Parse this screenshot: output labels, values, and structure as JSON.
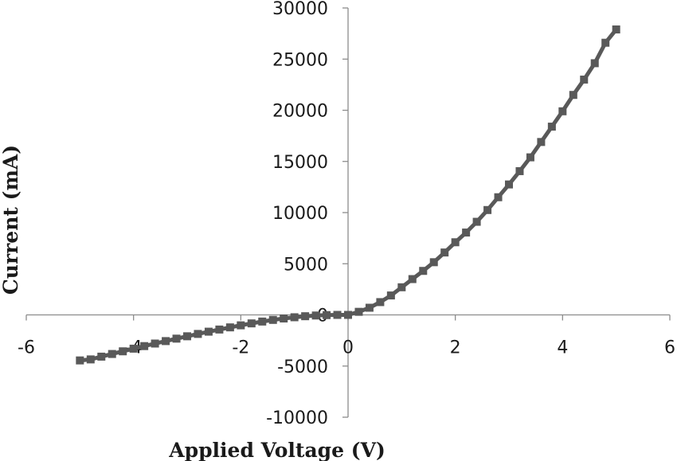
{
  "chart_data": {
    "type": "scatter",
    "title": "",
    "xlabel": "Applied Voltage (V)",
    "ylabel": "Current (mA)",
    "xlim": [
      -6,
      6
    ],
    "ylim": [
      -10000,
      30000
    ],
    "x_ticks": [
      -6,
      -4,
      -2,
      0,
      2,
      4,
      6
    ],
    "y_ticks": [
      -10000,
      -5000,
      0,
      5000,
      10000,
      15000,
      20000,
      25000,
      30000
    ],
    "x_tick_labels": [
      "-6",
      "-4",
      "-2",
      "0",
      "2",
      "4",
      "6"
    ],
    "y_tick_labels": [
      "-10000",
      "-5000",
      "0",
      "5000",
      "10000",
      "15000",
      "20000",
      "25000",
      "30000"
    ],
    "grid": false,
    "legend": "none",
    "series_color": "#595959",
    "marker": "square",
    "series": [
      {
        "x": [
          -5.0,
          -4.8,
          -4.6,
          -4.4,
          -4.2,
          -4.0,
          -3.8,
          -3.6,
          -3.4,
          -3.2,
          -3.0,
          -2.8,
          -2.6,
          -2.4,
          -2.2,
          -2.0,
          -1.8,
          -1.6,
          -1.4,
          -1.2,
          -1.0,
          -0.8,
          -0.6,
          -0.4,
          -0.2,
          0.0,
          0.2,
          0.4,
          0.6,
          0.8,
          1.0,
          1.2,
          1.4,
          1.6,
          1.8,
          2.0,
          2.2,
          2.4,
          2.6,
          2.8,
          3.0,
          3.2,
          3.4,
          3.6,
          3.8,
          4.0,
          4.2,
          4.4,
          4.6,
          4.8,
          5.0
        ],
        "y": [
          -4450,
          -4350,
          -4080,
          -3820,
          -3560,
          -3300,
          -3050,
          -2800,
          -2560,
          -2320,
          -2090,
          -1860,
          -1640,
          -1430,
          -1220,
          -1020,
          -830,
          -650,
          -490,
          -350,
          -230,
          -130,
          -60,
          -20,
          0,
          0,
          300,
          700,
          1250,
          1900,
          2700,
          3500,
          4300,
          5150,
          6100,
          7100,
          8050,
          9100,
          10250,
          11500,
          12750,
          14050,
          15400,
          16900,
          18400,
          19900,
          21500,
          23000,
          24600,
          26600,
          27900
        ]
      }
    ]
  }
}
